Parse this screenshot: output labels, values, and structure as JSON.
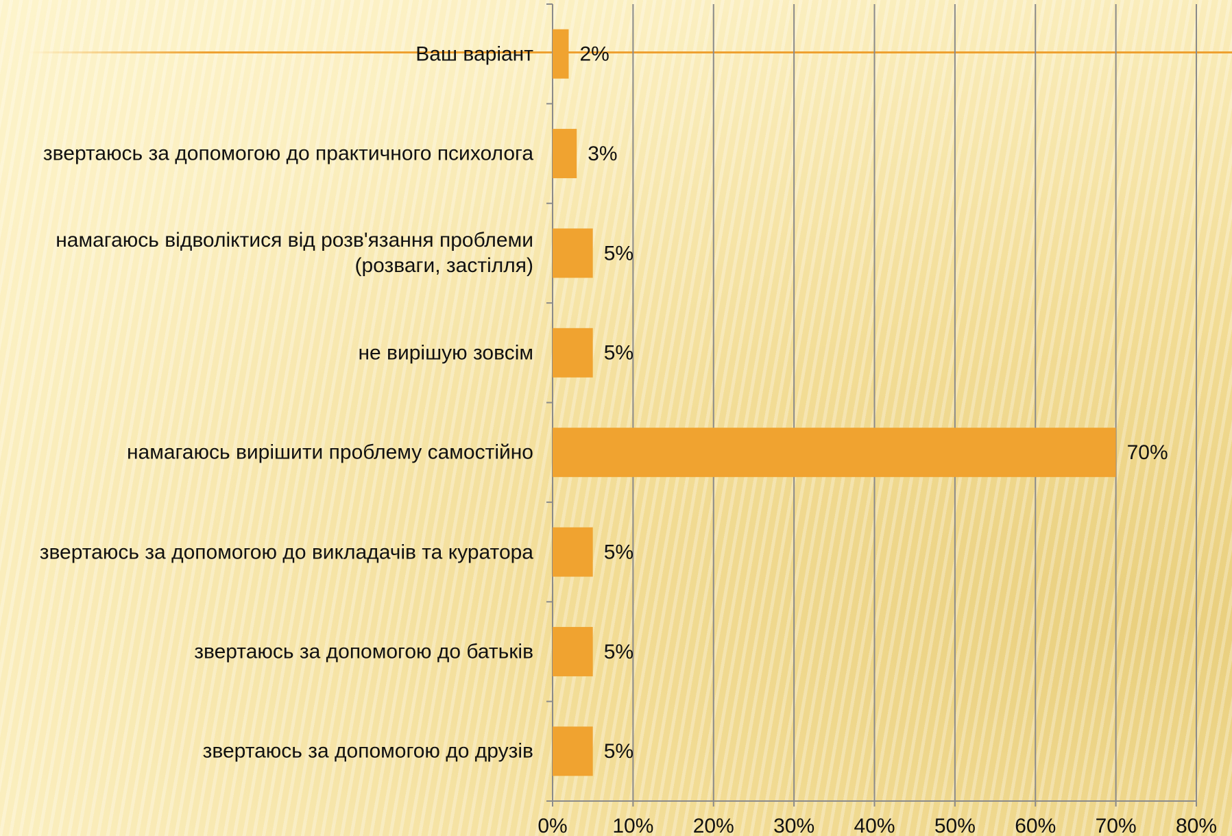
{
  "chart_data": {
    "type": "bar",
    "orientation": "horizontal",
    "categories": [
      "Ваш варіант",
      "звертаюсь за допомогою до практичного психолога",
      "намагаюсь відволіктися від розв'язання проблеми\n(розваги, застілля)",
      "не вирішую зовсім",
      "намагаюсь вирішити проблему самостійно",
      "звертаюсь за допомогою до викладачів та куратора",
      "звертаюсь за допомогою до батьків",
      "звертаюсь за допомогою до друзів"
    ],
    "values": [
      2,
      3,
      5,
      5,
      70,
      5,
      5,
      5
    ],
    "value_labels": [
      "2%",
      "3%",
      "5%",
      "5%",
      "70%",
      "5%",
      "5%",
      "5%"
    ],
    "color": "#f0a330",
    "xlim": [
      0,
      80
    ],
    "xticks": [
      {
        "value": 0,
        "label": "0%"
      },
      {
        "value": 10,
        "label": "10%"
      },
      {
        "value": 20,
        "label": "20%"
      },
      {
        "value": 30,
        "label": "30%"
      },
      {
        "value": 40,
        "label": "40%"
      },
      {
        "value": 50,
        "label": "50%"
      },
      {
        "value": 60,
        "label": "60%"
      },
      {
        "value": 70,
        "label": "70%"
      },
      {
        "value": 80,
        "label": "80%"
      }
    ],
    "grid": true
  }
}
